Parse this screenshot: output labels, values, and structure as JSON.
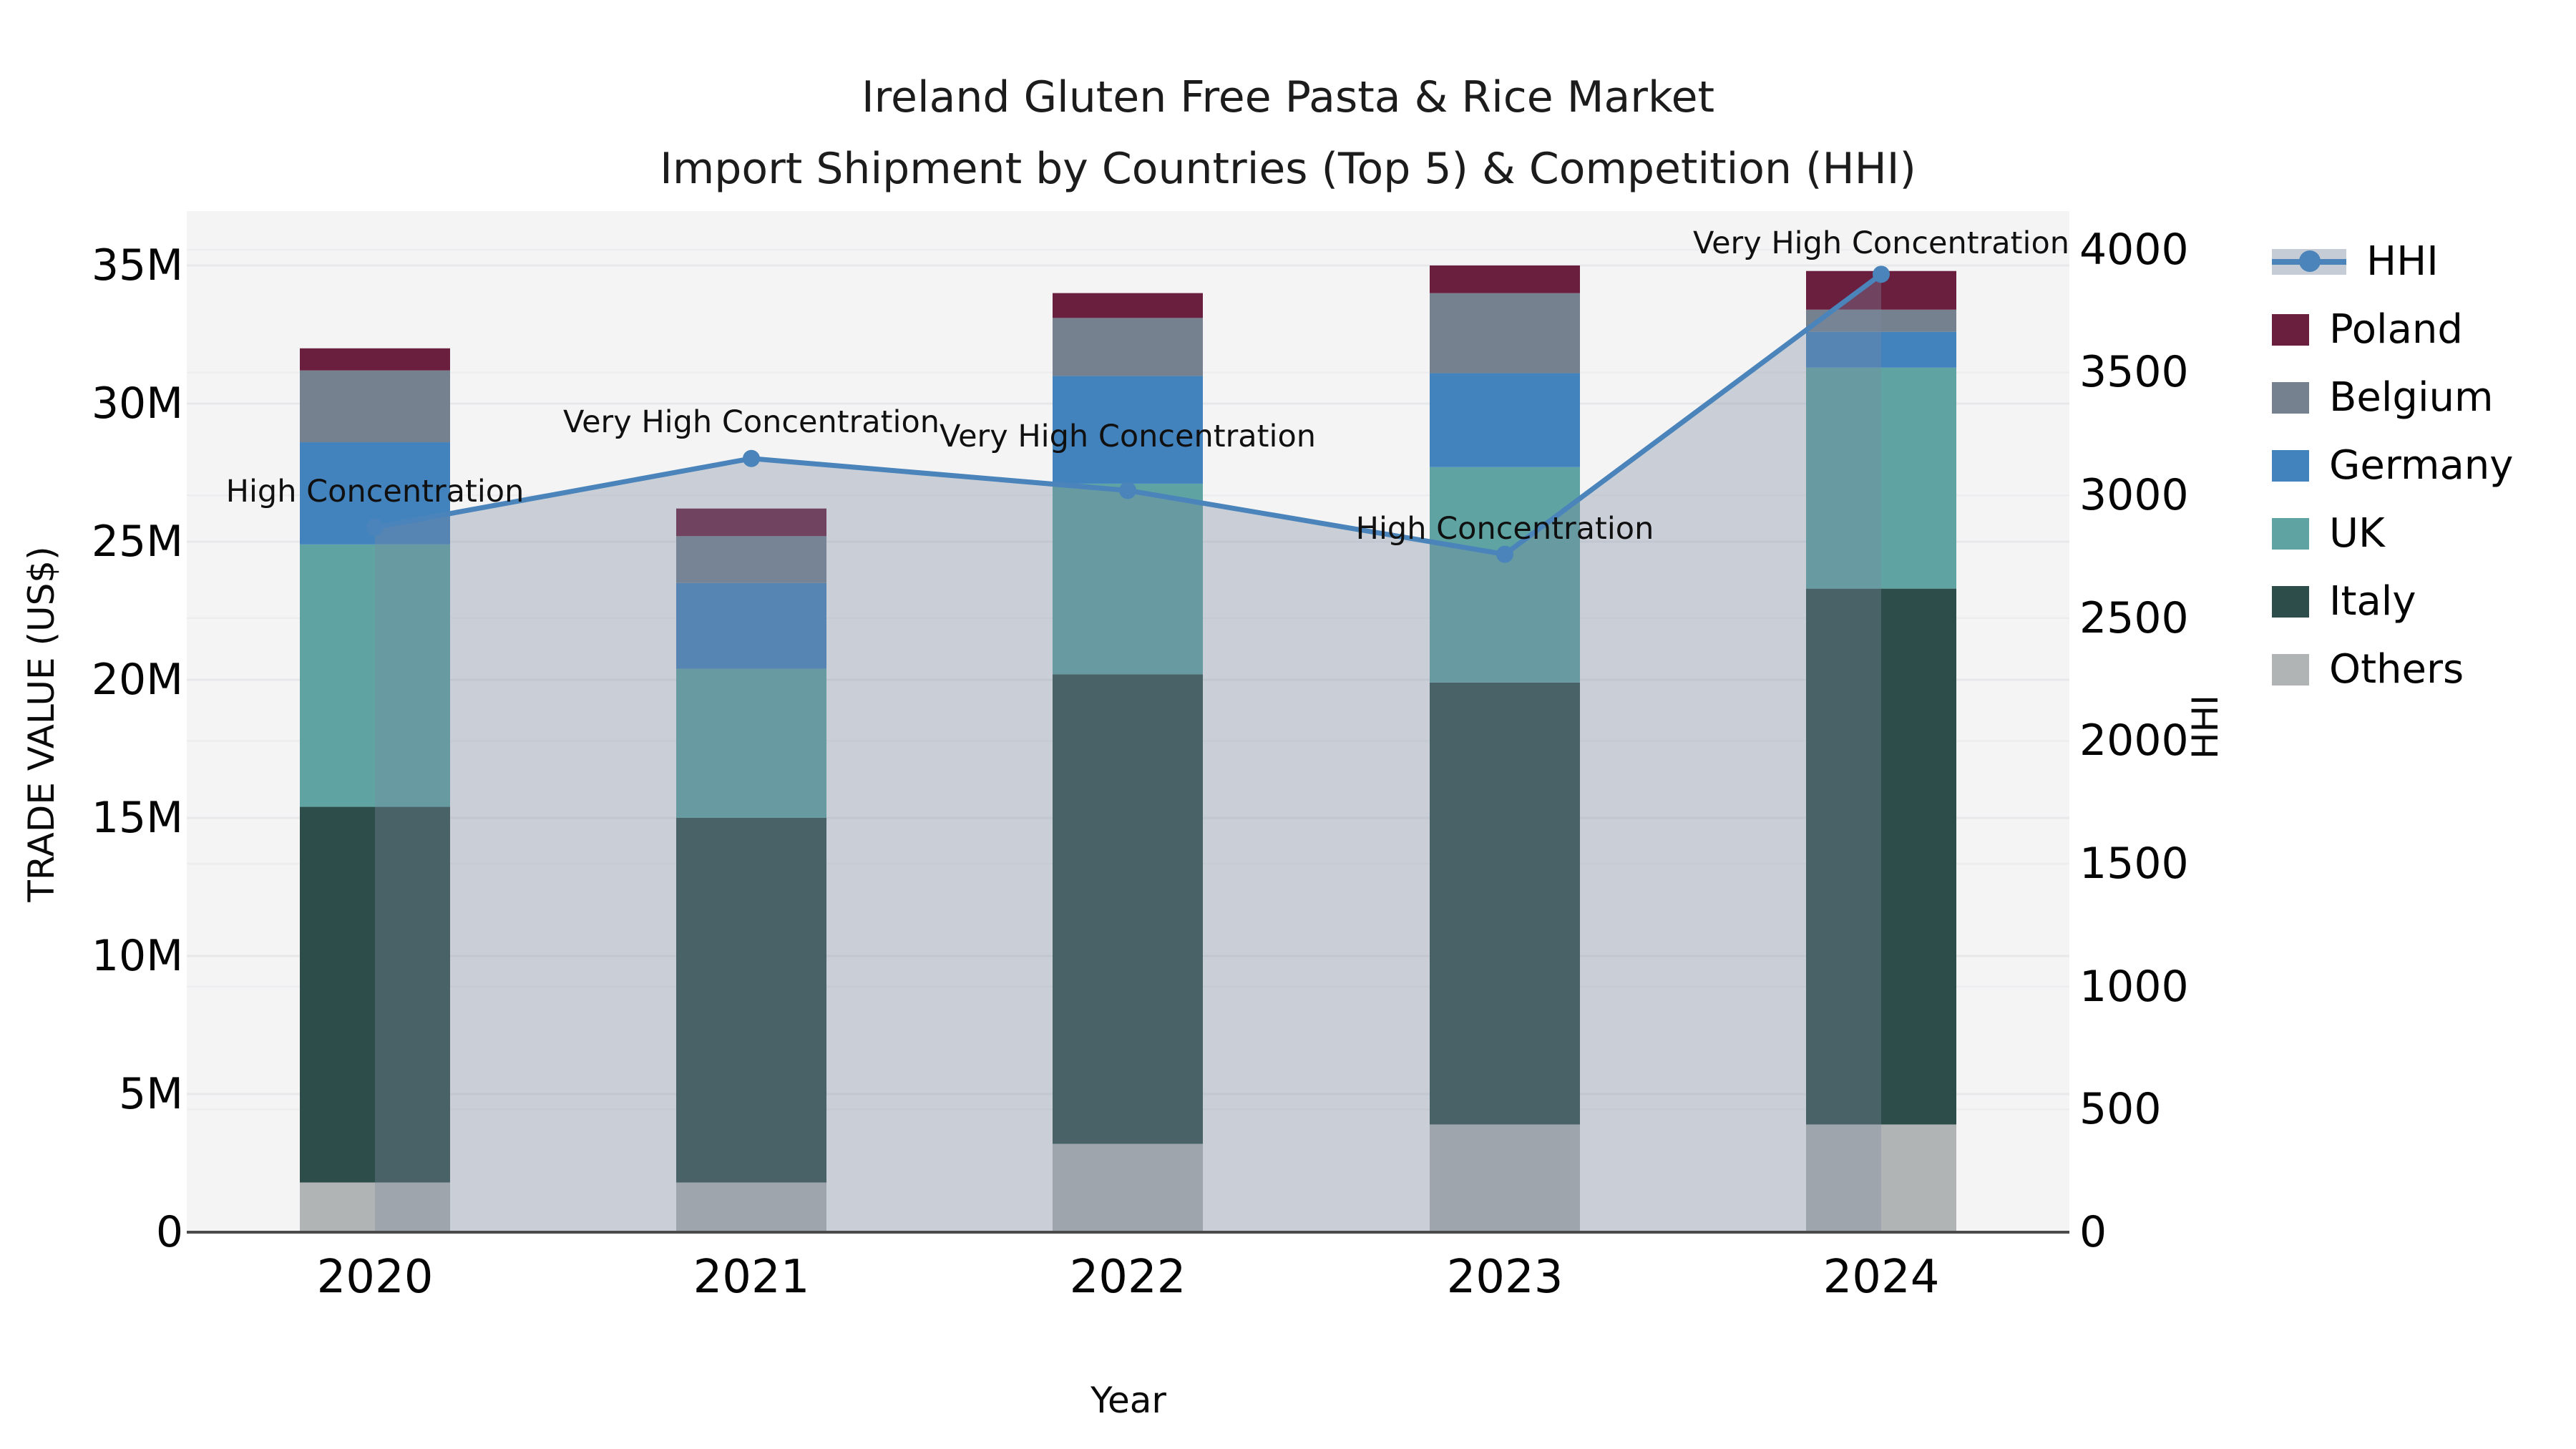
{
  "title": {
    "line1": "Ireland Gluten Free Pasta & Rice Market",
    "line2": "Import Shipment by Countries (Top 5) & Competition (HHI)"
  },
  "axes": {
    "left": {
      "title": "TRADE VALUE (US$)",
      "ticks": [
        "0",
        "5M",
        "10M",
        "15M",
        "20M",
        "25M",
        "30M",
        "35M"
      ]
    },
    "right": {
      "title": "HHI",
      "ticks": [
        "0",
        "500",
        "1000",
        "1500",
        "2000",
        "2500",
        "3000",
        "3500",
        "4000"
      ]
    },
    "bottom": {
      "title": "Year"
    }
  },
  "legend": {
    "position": "right-outside",
    "items": [
      {
        "label": "HHI",
        "type": "line",
        "color": "#4a84ba"
      },
      {
        "label": "Poland",
        "type": "patch",
        "color": "#6b1f3f"
      },
      {
        "label": "Belgium",
        "type": "patch",
        "color": "#75818f"
      },
      {
        "label": "Germany",
        "type": "patch",
        "color": "#4383bd"
      },
      {
        "label": "UK",
        "type": "patch",
        "color": "#5fa3a3"
      },
      {
        "label": "Italy",
        "type": "patch",
        "color": "#2d4d4a"
      },
      {
        "label": "Others",
        "type": "patch",
        "color": "#b1b4b4"
      }
    ]
  },
  "chart_data": {
    "type": "combo-stacked-bar-line",
    "title": "Ireland Gluten Free Pasta & Rice Market — Import Shipment by Countries (Top 5) & Competition (HHI)",
    "xlabel": "Year",
    "ylabel_left": "TRADE VALUE (US$)",
    "ylabel_right": "HHI",
    "categories": [
      "2020",
      "2021",
      "2022",
      "2023",
      "2024"
    ],
    "units_left": "M US$",
    "ylim_left": [
      0,
      37
    ],
    "ylim_right": [
      0,
      4160
    ],
    "grid": "on-faint",
    "bar_series": [
      {
        "name": "Others",
        "color": "#b1b4b4",
        "values": [
          1.8,
          1.8,
          3.2,
          3.9,
          3.9
        ]
      },
      {
        "name": "Italy",
        "color": "#2d4d4a",
        "values": [
          13.6,
          13.2,
          17.0,
          16.0,
          19.4
        ]
      },
      {
        "name": "UK",
        "color": "#5fa3a3",
        "values": [
          9.5,
          5.4,
          6.9,
          7.8,
          8.0
        ]
      },
      {
        "name": "Germany",
        "color": "#4383bd",
        "values": [
          3.7,
          3.1,
          3.9,
          3.4,
          1.3
        ]
      },
      {
        "name": "Belgium",
        "color": "#75818f",
        "values": [
          2.6,
          1.7,
          2.1,
          2.9,
          0.8
        ]
      },
      {
        "name": "Poland",
        "color": "#6b1f3f",
        "values": [
          0.8,
          1.0,
          0.9,
          1.0,
          1.4
        ]
      }
    ],
    "bar_totals": [
      32.0,
      26.2,
      34.0,
      35.0,
      34.8
    ],
    "line_series": {
      "name": "HHI",
      "color": "#4a84ba",
      "area_fill": "rgba(122,137,160,0.35)",
      "values": [
        2870,
        3150,
        3020,
        2760,
        3900
      ]
    },
    "annotations": [
      "High Concentration",
      "Very High Concentration",
      "Very High Concentration",
      "High Concentration",
      "Very High Concentration"
    ],
    "plot_background": "#f4f4f5",
    "gridline_color": "#e7e8ea",
    "axis_line_color": "#4a4a4a"
  }
}
